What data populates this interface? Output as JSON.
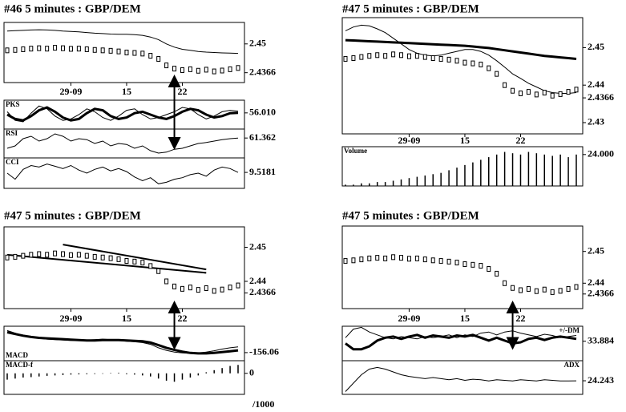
{
  "chart_data": [
    {
      "type": "line",
      "title": "#46   5 minutes : GBP/DEM",
      "xlim": [
        0,
        29
      ],
      "xticks": [
        {
          "value": 8,
          "label": "29-09"
        },
        15,
        22
      ],
      "ylim": [
        2.432,
        2.46
      ],
      "yticks": [
        2.45,
        2.4366
      ],
      "price": [
        2.447,
        2.4472,
        2.4475,
        2.4478,
        2.448,
        2.4478,
        2.4482,
        2.448,
        2.4477,
        2.4478,
        2.4475,
        2.4472,
        2.447,
        2.4468,
        2.4465,
        2.446,
        2.4458,
        2.4455,
        2.4445,
        2.443,
        2.44,
        2.4385,
        2.4378,
        2.4382,
        2.4375,
        2.438,
        2.4372,
        2.4376,
        2.4382,
        2.4388
      ],
      "series": [
        {
          "color": "#000",
          "values": [
            2.456,
            2.4562,
            2.4563,
            2.4565,
            2.4566,
            2.4565,
            2.4563,
            2.456,
            2.4558,
            2.4556,
            2.4553,
            2.455,
            2.4548,
            2.4546,
            2.4545,
            2.4545,
            2.4543,
            2.454,
            2.4532,
            2.452,
            2.45,
            2.4485,
            2.4475,
            2.447,
            2.4465,
            2.4462,
            2.446,
            2.4458,
            2.4457,
            2.4456
          ]
        }
      ],
      "panels": [
        {
          "label": "PKS",
          "kind": "line",
          "ylim": [
            0,
            100
          ],
          "yticks": [
            {
              "value": 56.01,
              "label": "56.010"
            }
          ],
          "series": [
            {
              "color": "#000",
              "bold": true,
              "values": [
                50,
                35,
                30,
                45,
                65,
                75,
                60,
                40,
                30,
                35,
                55,
                70,
                65,
                45,
                35,
                40,
                55,
                60,
                50,
                40,
                35,
                45,
                60,
                70,
                65,
                50,
                40,
                45,
                55,
                56
              ]
            },
            {
              "color": "#000",
              "values": [
                60,
                30,
                25,
                55,
                80,
                70,
                45,
                30,
                35,
                50,
                70,
                60,
                40,
                30,
                45,
                65,
                70,
                50,
                35,
                40,
                50,
                60,
                75,
                70,
                50,
                35,
                45,
                60,
                65,
                62
              ]
            }
          ]
        },
        {
          "label": "RSI",
          "kind": "line",
          "ylim": [
            20,
            80
          ],
          "yticks": [
            61.362
          ],
          "series": [
            {
              "color": "#000",
              "values": [
                40,
                45,
                60,
                65,
                55,
                60,
                70,
                65,
                55,
                60,
                58,
                50,
                55,
                45,
                50,
                48,
                40,
                45,
                35,
                30,
                32,
                38,
                40,
                45,
                50,
                52,
                55,
                58,
                60,
                61.36
              ]
            }
          ]
        },
        {
          "label": "CCI",
          "kind": "line",
          "ylim": [
            -200,
            200
          ],
          "yticks": [
            9.5181
          ],
          "series": [
            {
              "color": "#000",
              "values": [
                0,
                -80,
                50,
                100,
                80,
                120,
                90,
                60,
                100,
                40,
                0,
                50,
                80,
                30,
                60,
                20,
                -50,
                -100,
                -60,
                -140,
                -120,
                -80,
                -60,
                -20,
                0,
                -40,
                40,
                80,
                60,
                9.5
              ]
            }
          ]
        }
      ]
    },
    {
      "type": "line",
      "title": "#47   5 minutes : GBP/DEM",
      "xlim": [
        0,
        29
      ],
      "xticks": [
        {
          "value": 8,
          "label": "29-09"
        },
        15,
        22
      ],
      "ylim": [
        2.427,
        2.458
      ],
      "yticks": [
        2.45,
        2.44,
        2.4366,
        2.43
      ],
      "price": [
        2.447,
        2.4472,
        2.4475,
        2.4478,
        2.448,
        2.4478,
        2.4482,
        2.448,
        2.4477,
        2.4478,
        2.4475,
        2.4472,
        2.447,
        2.4468,
        2.4465,
        2.446,
        2.4458,
        2.4455,
        2.4445,
        2.443,
        2.44,
        2.4385,
        2.4378,
        2.4382,
        2.4375,
        2.438,
        2.4372,
        2.4376,
        2.4382,
        2.4388
      ],
      "series": [
        {
          "color": "#000",
          "bold": true,
          "values": [
            2.452,
            2.4519,
            2.4518,
            2.4517,
            2.4516,
            2.4515,
            2.4514,
            2.4513,
            2.4512,
            2.4511,
            2.451,
            2.4509,
            2.4508,
            2.4507,
            2.4506,
            2.4505,
            2.4503,
            2.4501,
            2.4499,
            2.4496,
            2.4493,
            2.449,
            2.4487,
            2.4484,
            2.4481,
            2.4478,
            2.4476,
            2.4474,
            2.4472,
            2.447
          ]
        },
        {
          "color": "#000",
          "values": [
            2.4545,
            2.4555,
            2.456,
            2.4558,
            2.455,
            2.454,
            2.4525,
            2.451,
            2.4495,
            2.4485,
            2.448,
            2.4478,
            2.448,
            2.4485,
            2.449,
            2.4495,
            2.4495,
            2.449,
            2.448,
            2.4465,
            2.4448,
            2.443,
            2.4418,
            2.4405,
            2.4395,
            2.4385,
            2.438,
            2.4378,
            2.4378,
            2.438
          ]
        }
      ],
      "panels": [
        {
          "label": "Volume",
          "kind": "bar",
          "ylim": [
            0,
            30
          ],
          "yticks": [
            {
              "value": 24,
              "label": "24.000"
            }
          ],
          "series": [
            {
              "color": "#000",
              "values": [
                1,
                1,
                2,
                2,
                3,
                3,
                4,
                5,
                6,
                7,
                8,
                9,
                10,
                12,
                14,
                16,
                18,
                20,
                22,
                24,
                26,
                25,
                24,
                26,
                25,
                24,
                23,
                24,
                22,
                24
              ]
            }
          ]
        }
      ]
    },
    {
      "type": "line",
      "title": "#47   5 minutes : GBP/DEM",
      "xlim": [
        0,
        29
      ],
      "xticks": [
        {
          "value": 8,
          "label": "29-09"
        },
        15,
        22
      ],
      "ylim": [
        2.432,
        2.456
      ],
      "yticks": [
        2.45,
        2.44,
        2.4366
      ],
      "price": [
        2.447,
        2.4472,
        2.4475,
        2.4478,
        2.448,
        2.4478,
        2.4482,
        2.448,
        2.4477,
        2.4478,
        2.4475,
        2.4472,
        2.447,
        2.4468,
        2.4465,
        2.446,
        2.4458,
        2.4455,
        2.4445,
        2.443,
        2.44,
        2.4385,
        2.4378,
        2.4382,
        2.4375,
        2.438,
        2.4372,
        2.4376,
        2.4382,
        2.4388
      ],
      "lines": [
        {
          "x": [
            0,
            25
          ],
          "y": [
            2.4478,
            2.4425
          ]
        },
        {
          "x": [
            7,
            25
          ],
          "y": [
            2.4508,
            2.4435
          ]
        }
      ],
      "panels": [
        {
          "label": "MACD",
          "label_side": "bottom",
          "kind": "line",
          "ylim": [
            -250,
            150
          ],
          "yticks": [
            -156.06
          ],
          "series": [
            {
              "color": "#000",
              "bold": true,
              "values": [
                80,
                60,
                40,
                25,
                15,
                10,
                5,
                0,
                -5,
                -10,
                -15,
                -15,
                -10,
                -10,
                -10,
                -15,
                -20,
                -25,
                -40,
                -70,
                -100,
                -125,
                -145,
                -160,
                -165,
                -165,
                -160,
                -150,
                -140,
                -130
              ]
            },
            {
              "color": "#000",
              "values": [
                100,
                70,
                40,
                20,
                10,
                0,
                -5,
                -10,
                -15,
                -15,
                -10,
                -5,
                0,
                -5,
                -15,
                -25,
                -30,
                -40,
                -60,
                -100,
                -130,
                -150,
                -160,
                -165,
                -160,
                -150,
                -135,
                -115,
                -100,
                -90
              ]
            }
          ]
        },
        {
          "label": "MACD-f",
          "kind": "bar",
          "ylim": [
            -100,
            60
          ],
          "yticks": [
            0
          ],
          "series": [
            {
              "color": "#000",
              "values": [
                -30,
                -25,
                -20,
                -18,
                -15,
                -12,
                -10,
                -8,
                -6,
                -5,
                -4,
                -3,
                -2,
                2,
                3,
                -4,
                -6,
                -10,
                -15,
                -25,
                -35,
                -40,
                -30,
                -20,
                -10,
                5,
                15,
                25,
                35,
                40
              ]
            }
          ]
        }
      ],
      "note": "/1000"
    },
    {
      "type": "line",
      "title": "#47   5 minutes : GBP/DEM",
      "xlim": [
        0,
        29
      ],
      "xticks": [
        {
          "value": 8,
          "label": "29-09"
        },
        15,
        22
      ],
      "ylim": [
        2.432,
        2.458
      ],
      "yticks": [
        2.45,
        2.44,
        2.4366
      ],
      "price": [
        2.447,
        2.4472,
        2.4475,
        2.4478,
        2.448,
        2.4478,
        2.4482,
        2.448,
        2.4477,
        2.4478,
        2.4475,
        2.4472,
        2.447,
        2.4468,
        2.4465,
        2.446,
        2.4458,
        2.4455,
        2.4445,
        2.443,
        2.44,
        2.4385,
        2.4378,
        2.4382,
        2.4375,
        2.438,
        2.4372,
        2.4376,
        2.4382,
        2.4388
      ],
      "panels": [
        {
          "label": "+/-DM",
          "label_side": "right",
          "kind": "line",
          "ylim": [
            0,
            60
          ],
          "yticks": [
            33.884
          ],
          "series": [
            {
              "color": "#000",
              "bold": true,
              "values": [
                30,
                20,
                20,
                25,
                35,
                40,
                42,
                38,
                42,
                45,
                40,
                44,
                42,
                40,
                44,
                42,
                45,
                40,
                35,
                40,
                35,
                30,
                32,
                38,
                40,
                36,
                40,
                42,
                40,
                38
              ]
            },
            {
              "color": "#000",
              "values": [
                40,
                55,
                58,
                50,
                45,
                40,
                38,
                42,
                40,
                38,
                42,
                40,
                42,
                45,
                40,
                45,
                42,
                48,
                50,
                45,
                50,
                52,
                48,
                45,
                42,
                46,
                44,
                40,
                42,
                44
              ]
            }
          ]
        },
        {
          "label": "ADX",
          "label_side": "right",
          "kind": "line",
          "ylim": [
            0,
            60
          ],
          "yticks": [
            24.243
          ],
          "series": [
            {
              "color": "#000",
              "values": [
                5,
                20,
                35,
                45,
                48,
                45,
                40,
                35,
                32,
                30,
                28,
                30,
                28,
                26,
                28,
                25,
                27,
                26,
                24,
                26,
                25,
                24,
                26,
                25,
                24,
                26,
                25,
                24,
                24,
                24.2
              ]
            }
          ]
        }
      ]
    }
  ]
}
